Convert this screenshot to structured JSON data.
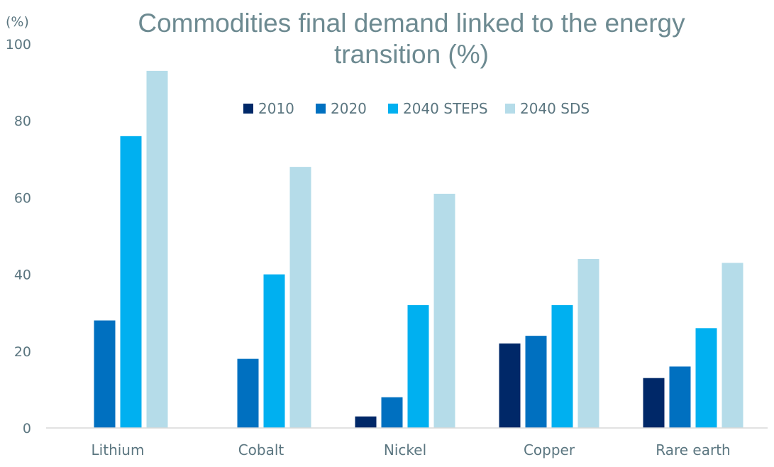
{
  "chart_data": {
    "type": "bar",
    "title_lines": [
      "Commodities final demand linked to the energy",
      "transition (%)"
    ],
    "ylabel": "(%)",
    "ylim": [
      0,
      100
    ],
    "yticks": [
      "0",
      "20",
      "40",
      "60",
      "80",
      "100"
    ],
    "ytick_values": [
      0,
      20,
      40,
      60,
      80,
      100
    ],
    "grid": false,
    "legend_position": "top",
    "categories": [
      "Lithium",
      "Cobalt",
      "Nickel",
      "Copper",
      "Rare earth"
    ],
    "series": [
      {
        "name": "2010",
        "color": "#002868",
        "values": [
          0,
          0,
          3,
          22,
          13
        ]
      },
      {
        "name": "2020",
        "color": "#0070c0",
        "values": [
          28,
          18,
          8,
          24,
          16
        ]
      },
      {
        "name": "2040 STEPS",
        "color": "#00b0f0",
        "values": [
          76,
          40,
          32,
          32,
          26
        ]
      },
      {
        "name": "2040 SDS",
        "color": "#b5dce9",
        "values": [
          93,
          68,
          61,
          44,
          43
        ]
      }
    ]
  }
}
